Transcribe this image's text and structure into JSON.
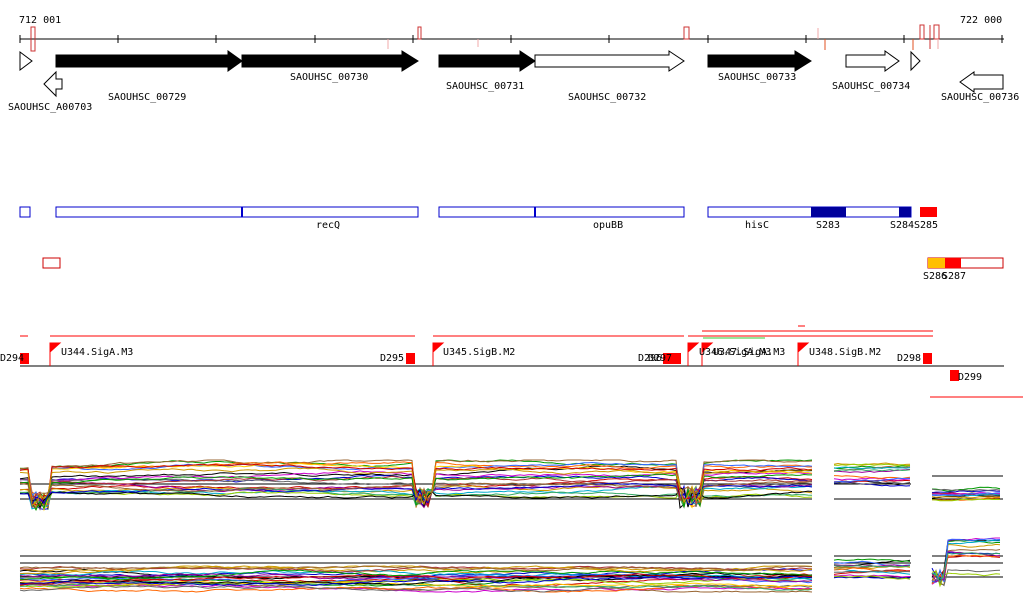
{
  "coords": {
    "start": "712 001",
    "end": "722 000"
  },
  "genes": [
    {
      "label": "SAOUHSC_A00703",
      "filled": false,
      "strand": "-"
    },
    {
      "label": "SAOUHSC_00729",
      "filled": true,
      "strand": "+"
    },
    {
      "label": "SAOUHSC_00730",
      "filled": true,
      "strand": "+"
    },
    {
      "label": "SAOUHSC_00731",
      "filled": true,
      "strand": "+"
    },
    {
      "label": "SAOUHSC_00732",
      "filled": false,
      "strand": "+"
    },
    {
      "label": "SAOUHSC_00733",
      "filled": true,
      "strand": "+"
    },
    {
      "label": "SAOUHSC_00734",
      "filled": false,
      "strand": "+"
    },
    {
      "label": "SAOUHSC_00736",
      "filled": false,
      "strand": "-"
    }
  ],
  "operons": [
    {
      "label": "recQ"
    },
    {
      "label": "opuBB"
    },
    {
      "label": "hisC"
    }
  ],
  "features": [
    {
      "label": "S283",
      "color": "#00009c"
    },
    {
      "label": "S284",
      "color": "#00009c"
    },
    {
      "label": "S285",
      "color": "#ff0000"
    },
    {
      "label": "S286",
      "color": "#ffbf00"
    },
    {
      "label": "S287",
      "color": "#ff0000"
    }
  ],
  "segments": [
    {
      "label": "D294"
    },
    {
      "label": "U344.SigA.M3"
    },
    {
      "label": "D295"
    },
    {
      "label": "U345.SigB.M2"
    },
    {
      "label": "D296"
    },
    {
      "label": "D297"
    },
    {
      "label": "U346.SigA.M3"
    },
    {
      "label": "U347.SigA.M3"
    },
    {
      "label": "U348.SigB.M2"
    },
    {
      "label": "D298"
    },
    {
      "label": "D299"
    }
  ],
  "colors": {
    "gene_fill": "#000000",
    "operon_outline": "#0000cc",
    "segment_red": "#ff0000",
    "axis": "#000000"
  }
}
